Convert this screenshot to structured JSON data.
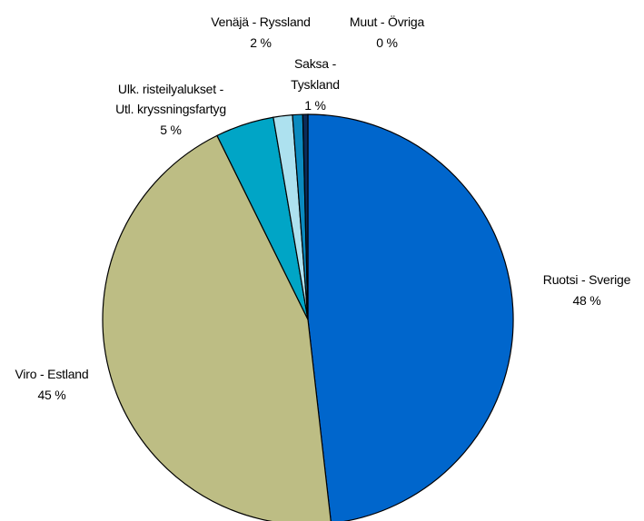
{
  "chart_data": {
    "type": "pie",
    "start_angle_deg": 0,
    "direction": "clockwise",
    "slices": [
      {
        "label_lines": [
          "Ruotsi - Sverige"
        ],
        "percent_label": "48 %",
        "value": 48.2,
        "color": "#0066cc"
      },
      {
        "label_lines": [
          "Viro - Estland"
        ],
        "percent_label": "45 %",
        "value": 44.5,
        "color": "#bdbd84"
      },
      {
        "label_lines": [
          "Ulk. risteilyalukset -",
          "Utl. kryssningsfartyg"
        ],
        "percent_label": "5 %",
        "value": 4.6,
        "color": "#00a5c6"
      },
      {
        "label_lines": [
          "Venäjä - Ryssland"
        ],
        "percent_label": "2 %",
        "value": 1.5,
        "color": "#ade1ef"
      },
      {
        "label_lines": [
          "Saksa -",
          "Tyskland"
        ],
        "percent_label": "1 %",
        "value": 0.8,
        "color": "#0a8abf"
      },
      {
        "label_lines": [
          "Muut - Övriga"
        ],
        "percent_label": "0 %",
        "value": 0.4,
        "color": "#0b2c5a"
      }
    ]
  }
}
